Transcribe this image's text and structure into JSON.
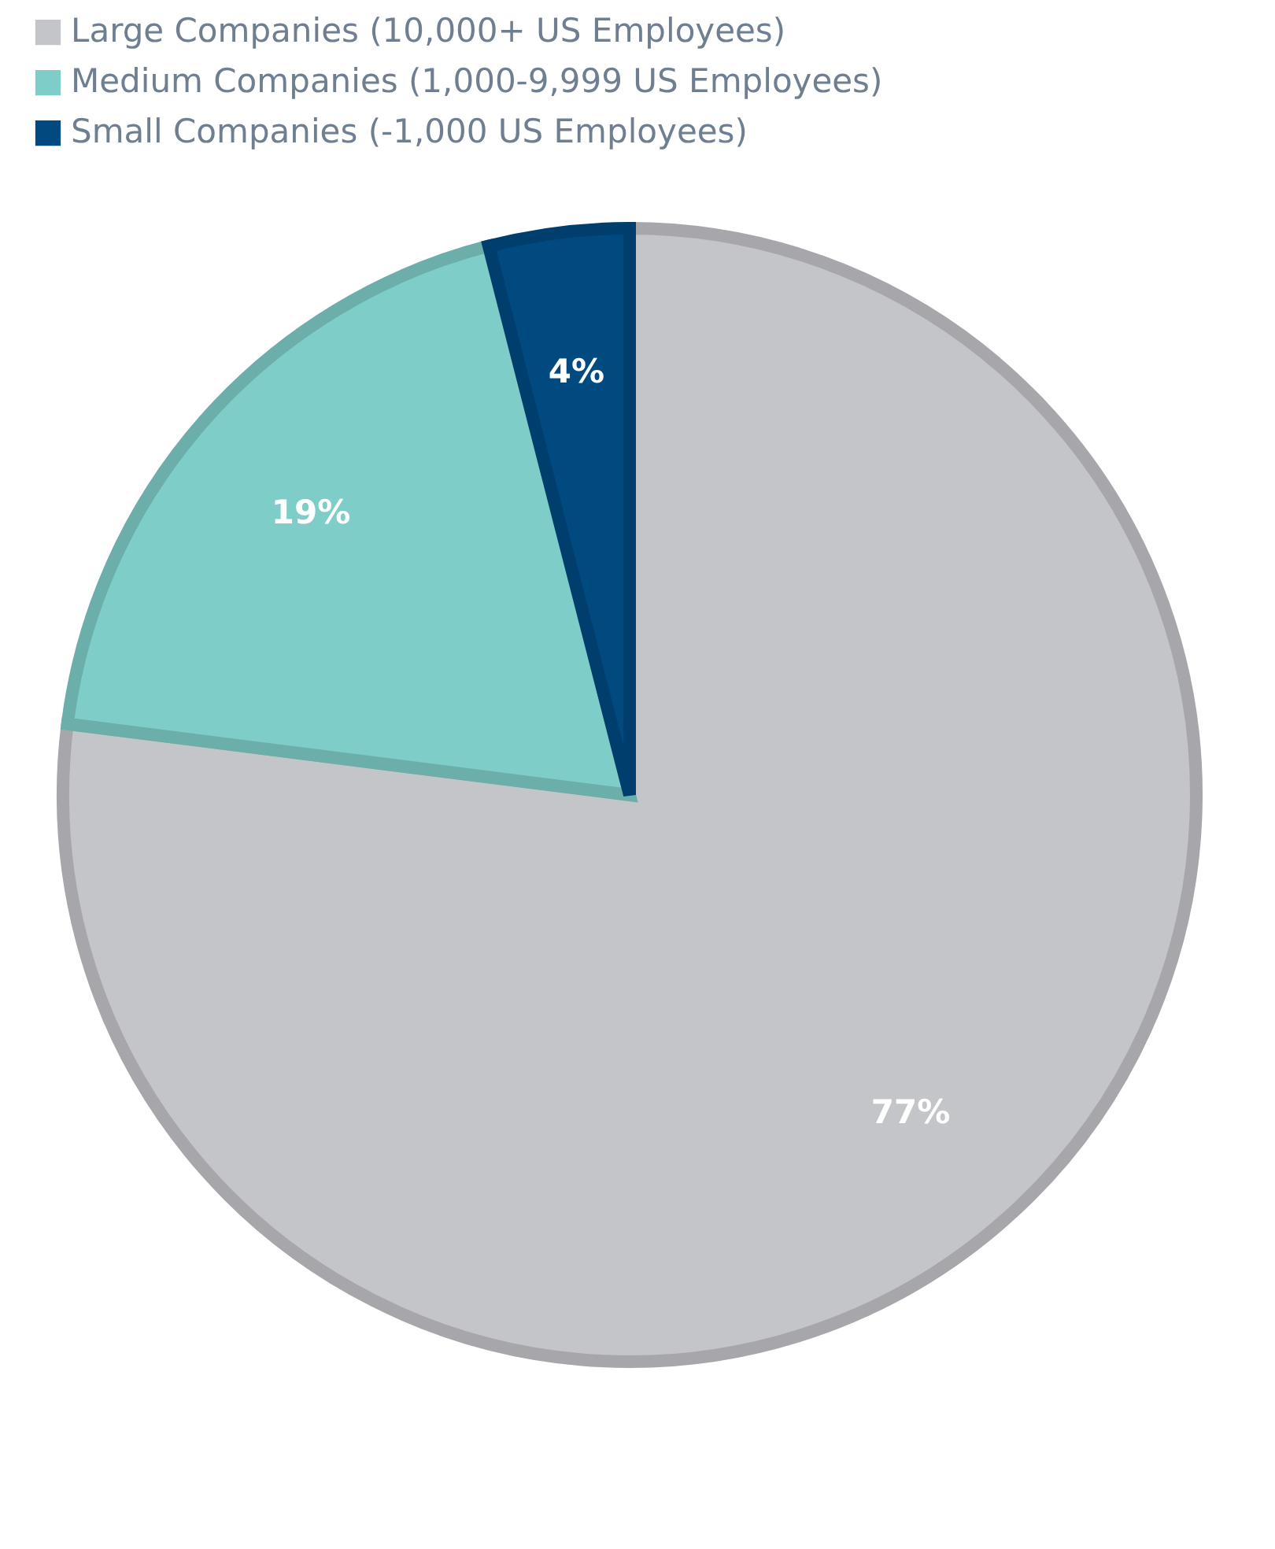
{
  "chart_data": {
    "type": "pie",
    "categories": [
      "Large Companies (10,000+ US Employees)",
      "Medium Companies (1,000-9,999 US Employees)",
      "Small Companies (-1,000 US Employees)"
    ],
    "values": [
      77,
      19,
      4
    ],
    "colors": [
      "#c4c5c9",
      "#7ecdc8",
      "#004a80"
    ],
    "value_labels": [
      "77%",
      "19%",
      "4%"
    ],
    "legend": "top"
  }
}
